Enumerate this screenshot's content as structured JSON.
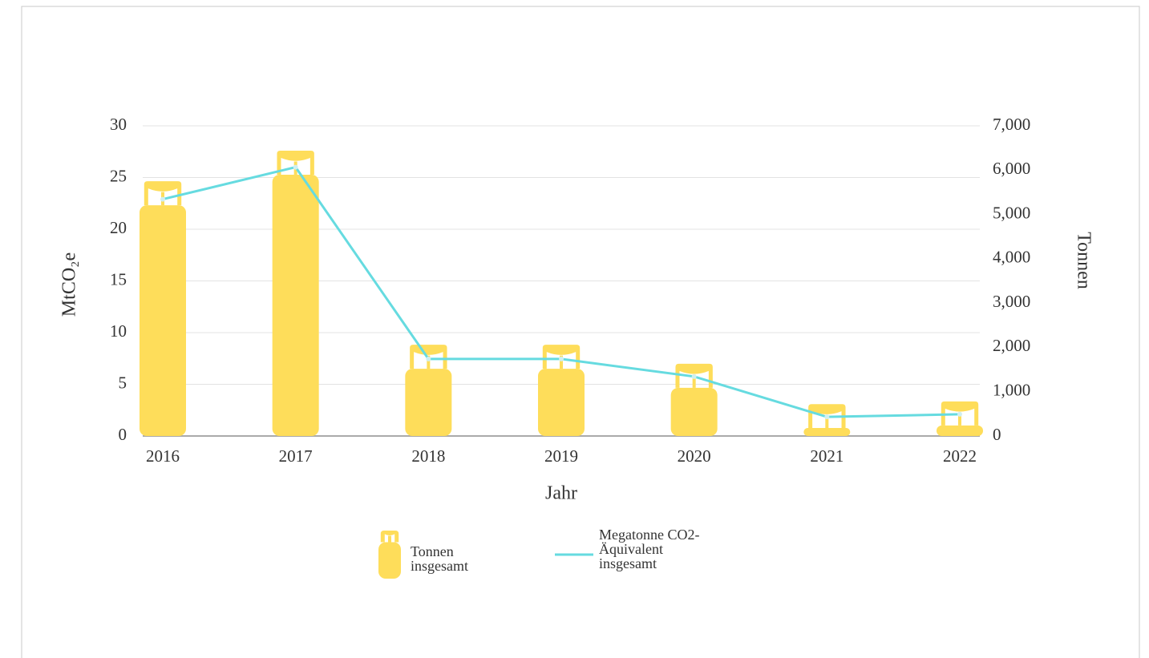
{
  "chart_data": {
    "type": "bar",
    "xlabel": "Jahr",
    "ylabel": "MtCO₂e",
    "y2label": "Tonnen",
    "categories": [
      "2016",
      "2017",
      "2018",
      "2019",
      "2020",
      "2021",
      "2022"
    ],
    "series": [
      {
        "name": "Tonnen insgesamt",
        "type": "bar",
        "axis": "y2",
        "color": "#fedd5a",
        "values": [
          5750,
          6440,
          2060,
          2060,
          1630,
          720,
          780
        ]
      },
      {
        "name": "Megatonne CO2-Äquivalent insgesamt",
        "type": "line",
        "color": "#66dbe0",
        "values": [
          22.9,
          26.0,
          7.45,
          7.45,
          5.75,
          1.85,
          2.1
        ]
      }
    ],
    "ylim": [
      0,
      30
    ],
    "yticks": [
      0,
      5,
      10,
      15,
      20,
      25,
      30
    ],
    "y2lim": [
      0,
      7000
    ],
    "y2ticks": [
      0,
      {
        "value": 1000,
        "label": "1,000"
      },
      {
        "value": 2000,
        "label": "2,000"
      },
      {
        "value": 3000,
        "label": "3,000"
      },
      {
        "value": 4000,
        "label": "4,000"
      },
      {
        "value": 5000,
        "label": "5,000"
      },
      {
        "value": 6000,
        "label": "6,000"
      },
      {
        "value": 7000,
        "label": "7,000"
      }
    ],
    "grid": true
  }
}
